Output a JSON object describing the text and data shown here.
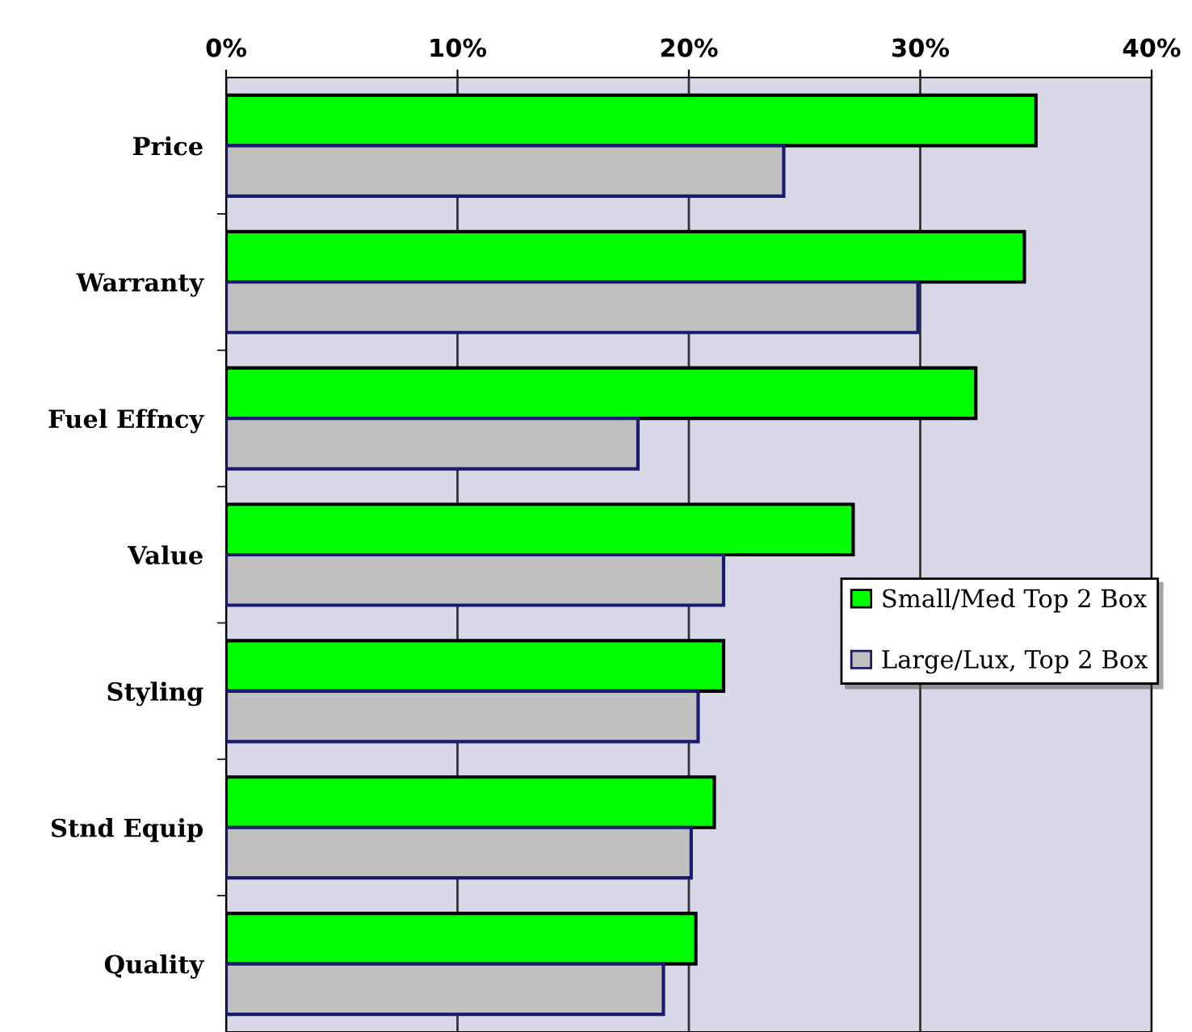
{
  "chart_data": {
    "type": "bar",
    "orientation": "horizontal",
    "categories": [
      "Price",
      "Warranty",
      "Fuel Effncy",
      "Value",
      "Styling",
      "Stnd Equip",
      "Quality"
    ],
    "series": [
      {
        "name": "Small/Med Top 2 Box",
        "color": "#00ff00",
        "values": [
          35.0,
          34.5,
          32.4,
          27.1,
          21.5,
          21.1,
          20.3
        ]
      },
      {
        "name": "Large/Lux, Top 2 Box",
        "color": "#c0c0c0",
        "values": [
          24.1,
          29.9,
          17.8,
          21.5,
          20.4,
          20.1,
          18.9
        ]
      }
    ],
    "xlim": [
      0,
      40
    ],
    "xticks": [
      {
        "value": 0,
        "label": "0%"
      },
      {
        "value": 10,
        "label": "10%"
      },
      {
        "value": 20,
        "label": "20%"
      },
      {
        "value": 30,
        "label": "30%"
      },
      {
        "value": 40,
        "label": "40%"
      }
    ],
    "grid": "x",
    "legend": "right"
  }
}
